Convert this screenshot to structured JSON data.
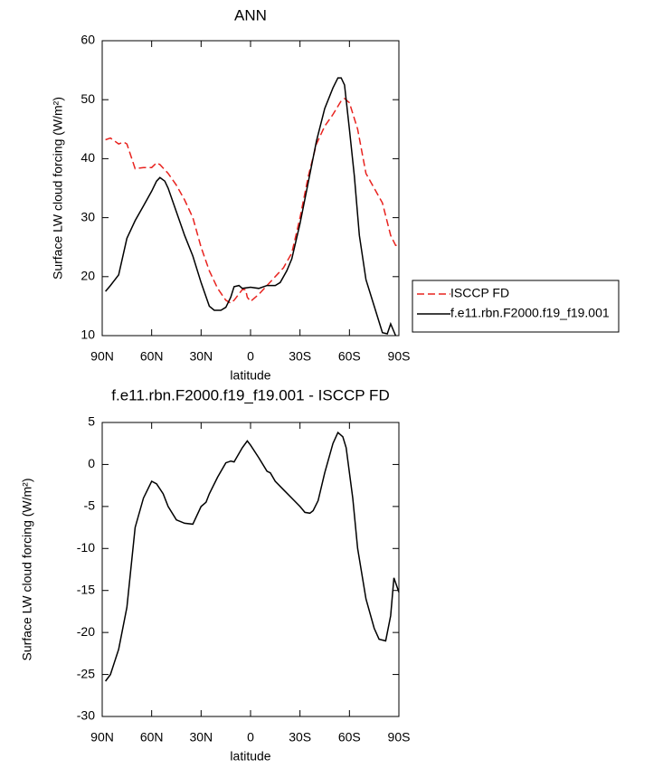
{
  "chart_data": [
    {
      "type": "line",
      "title": "ANN",
      "xlabel": "latitude",
      "ylabel": "Surface LW cloud forcing (W/m²)",
      "xlim": [
        90,
        -90
      ],
      "ylim": [
        10,
        60
      ],
      "xticks": [
        {
          "value": 90,
          "label": "90N"
        },
        {
          "value": 60,
          "label": "60N"
        },
        {
          "value": 30,
          "label": "30N"
        },
        0,
        {
          "value": -30,
          "label": "30S"
        },
        {
          "value": -60,
          "label": "60S"
        },
        {
          "value": -90,
          "label": "90S"
        }
      ],
      "yticks": [
        10,
        20,
        30,
        40,
        50,
        60
      ],
      "legend": "right",
      "series": [
        {
          "name": "ISCCP FD",
          "color": "#e8231f",
          "dash": true,
          "x": [
            88,
            85,
            80,
            77,
            75,
            70,
            65,
            60,
            57,
            55,
            50,
            45,
            40,
            35,
            30,
            25,
            20,
            15,
            12,
            10,
            5,
            3,
            2,
            0,
            -5,
            -10,
            -15,
            -20,
            -25,
            -30,
            -35,
            -40,
            -45,
            -50,
            -55,
            -57,
            -60,
            -65,
            -70,
            -75,
            -80,
            -85,
            -88,
            -90
          ],
          "values": [
            43.2,
            43.5,
            42.5,
            42.8,
            42.5,
            38.3,
            38.5,
            38.5,
            39.3,
            39,
            37.5,
            35.5,
            33,
            30,
            25,
            21,
            18,
            16,
            15.5,
            16,
            17.8,
            17.8,
            16.5,
            15.8,
            17,
            18.5,
            20,
            21.5,
            24,
            30,
            37,
            42.5,
            45.5,
            47.5,
            49.8,
            50.2,
            49.5,
            45,
            37.5,
            35,
            32.5,
            27,
            25.3,
            25.3
          ]
        },
        {
          "name": "f.e11.rbn.F2000.f19_f19.001",
          "color": "#000000",
          "dash": false,
          "x": [
            88,
            85,
            80,
            75,
            70,
            65,
            60,
            57,
            55,
            52,
            50,
            45,
            40,
            35,
            30,
            25,
            22,
            18,
            15,
            12,
            10,
            7,
            5,
            0,
            -5,
            -10,
            -15,
            -18,
            -22,
            -25,
            -30,
            -35,
            -40,
            -45,
            -50,
            -53,
            -55,
            -57,
            -60,
            -63,
            -66,
            -70,
            -75,
            -80,
            -83,
            -85,
            -88
          ],
          "values": [
            17.5,
            18.5,
            20.3,
            26.5,
            29.5,
            32,
            34.5,
            36.2,
            36.8,
            36.2,
            35,
            31,
            27,
            23.5,
            19,
            15,
            14.3,
            14.3,
            14.8,
            16.5,
            18.3,
            18.5,
            18,
            18.2,
            18,
            18.5,
            18.5,
            19,
            21,
            23,
            29,
            36,
            43,
            48.5,
            52,
            53.7,
            53.7,
            52.5,
            45,
            37,
            27,
            19.5,
            15,
            10.5,
            10.3,
            12,
            10
          ]
        }
      ]
    },
    {
      "type": "line",
      "title": "f.e11.rbn.F2000.f19_f19.001 - ISCCP FD",
      "xlabel": "latitude",
      "ylabel": "Surface LW cloud forcing (W/m²)",
      "xlim": [
        90,
        -90
      ],
      "ylim": [
        -30,
        5
      ],
      "xticks": [
        {
          "value": 90,
          "label": "90N"
        },
        {
          "value": 60,
          "label": "60N"
        },
        {
          "value": 30,
          "label": "30N"
        },
        0,
        {
          "value": -30,
          "label": "30S"
        },
        {
          "value": -60,
          "label": "60S"
        },
        {
          "value": -90,
          "label": "90S"
        }
      ],
      "yticks": [
        -30,
        -25,
        -20,
        -15,
        -10,
        -5,
        0,
        5
      ],
      "series": [
        {
          "color": "#000000",
          "dash": false,
          "x": [
            88,
            85,
            80,
            75,
            70,
            65,
            60,
            57,
            53,
            50,
            45,
            40,
            35,
            30,
            27,
            25,
            20,
            15,
            12,
            10,
            5,
            2,
            0,
            -5,
            -10,
            -12,
            -15,
            -20,
            -25,
            -30,
            -33,
            -36,
            -38,
            -41,
            -45,
            -50,
            -53,
            -56,
            -58,
            -62,
            -65,
            -70,
            -75,
            -78,
            -82,
            -85,
            -87,
            -90
          ],
          "values": [
            -25.8,
            -25,
            -22,
            -17,
            -7.5,
            -4,
            -2,
            -2.3,
            -3.5,
            -5,
            -6.6,
            -7,
            -7.1,
            -5,
            -4.5,
            -3.5,
            -1.5,
            0.2,
            0.4,
            0.3,
            2,
            2.8,
            2.3,
            0.8,
            -0.8,
            -1,
            -2,
            -3,
            -4,
            -5,
            -5.7,
            -5.8,
            -5.5,
            -4.3,
            -1,
            2.5,
            3.8,
            3.3,
            2,
            -4,
            -10,
            -16,
            -19.5,
            -20.8,
            -21,
            -18,
            -13.5,
            -15.2
          ]
        }
      ]
    }
  ]
}
